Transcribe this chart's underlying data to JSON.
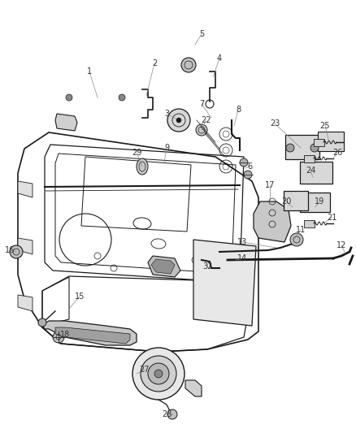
{
  "bg_color": "#ffffff",
  "lc": "#1a1a1a",
  "figsize": [
    4.38,
    5.33
  ],
  "dpi": 100,
  "font_size": 7.0,
  "label_color": "#333333"
}
